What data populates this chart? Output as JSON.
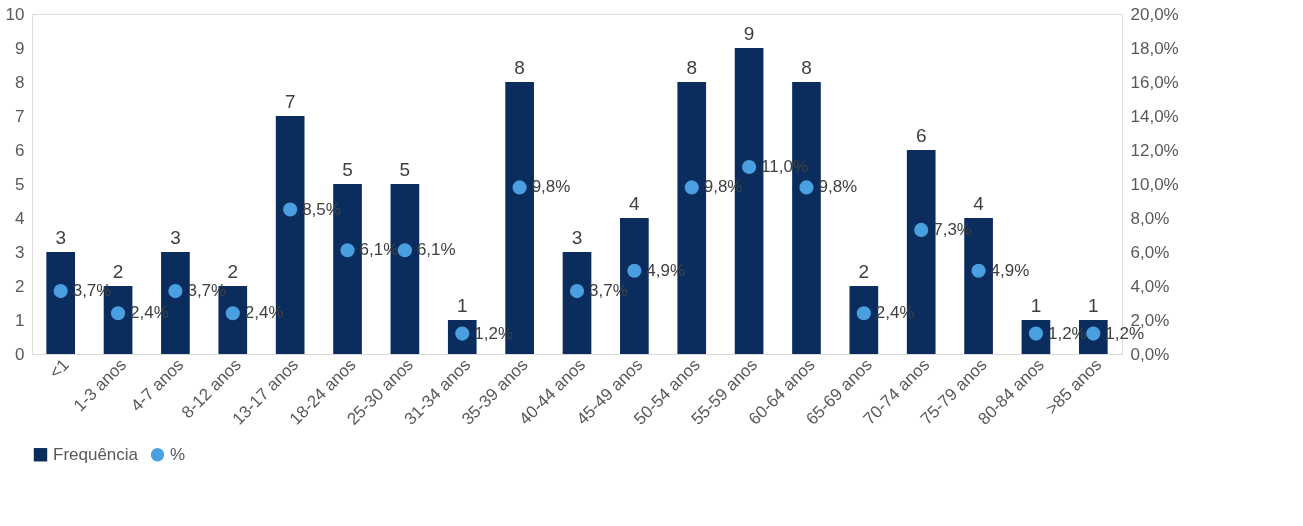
{
  "chart_data": {
    "type": "bar",
    "categories": [
      "<1",
      "1-3 anos",
      "4-7 anos",
      "8-12 anos",
      "13-17 anos",
      "18-24 anos",
      "25-30 anos",
      "31-34 anos",
      "35-39 anos",
      "40-44 anos",
      "45-49 anos",
      "50-54 anos",
      "55-59 anos",
      "60-64 anos",
      "65-69 anos",
      "70-74 anos",
      "75-79 anos",
      "80-84 anos",
      ">85 anos"
    ],
    "series": [
      {
        "name": "Frequência",
        "color": "#0b2d5e",
        "values": [
          3,
          2,
          3,
          2,
          7,
          5,
          5,
          1,
          8,
          3,
          4,
          8,
          9,
          8,
          2,
          6,
          4,
          1,
          1
        ],
        "value_labels": [
          "3",
          "2",
          "3",
          "2",
          "7",
          "5",
          "5",
          "1",
          "8",
          "3",
          "4",
          "8",
          "9",
          "8",
          "2",
          "6",
          "4",
          "1",
          "1"
        ]
      },
      {
        "name": "%",
        "type": "scatter",
        "axis": "y2",
        "color": "#4a9fe0",
        "values": [
          3.7,
          2.4,
          3.7,
          2.4,
          8.5,
          6.1,
          6.1,
          1.2,
          9.8,
          3.7,
          4.9,
          9.8,
          11.0,
          9.8,
          2.4,
          7.3,
          4.9,
          1.2,
          1.2
        ],
        "value_labels": [
          "3,7%",
          "2,4%",
          "3,7%",
          "2,4%",
          "8,5%",
          "6,1%",
          "6,1%",
          "1,2%",
          "9,8%",
          "3,7%",
          "4,9%",
          "9,8%",
          "11,0%",
          "9,8%",
          "2,4%",
          "7,3%",
          "4,9%",
          "1,2%",
          "1,2%"
        ]
      }
    ],
    "ylim": [
      0,
      10
    ],
    "yticks": [
      0,
      1,
      2,
      3,
      4,
      5,
      6,
      7,
      8,
      9,
      10
    ],
    "y2lim": [
      0,
      20
    ],
    "y2ticks": [
      {
        "value": 0,
        "label": "0,0%"
      },
      {
        "value": 2,
        "label": "2,0%"
      },
      {
        "value": 4,
        "label": "4,0%"
      },
      {
        "value": 6,
        "label": "6,0%"
      },
      {
        "value": 8,
        "label": "8,0%"
      },
      {
        "value": 10,
        "label": "10,0%"
      },
      {
        "value": 12,
        "label": "12,0%"
      },
      {
        "value": 14,
        "label": "14,0%"
      },
      {
        "value": 16,
        "label": "16,0%"
      },
      {
        "value": 18,
        "label": "18,0%"
      },
      {
        "value": 20,
        "label": "20,0%"
      }
    ],
    "grid": false,
    "legend": "bottom",
    "marker": "circle"
  }
}
